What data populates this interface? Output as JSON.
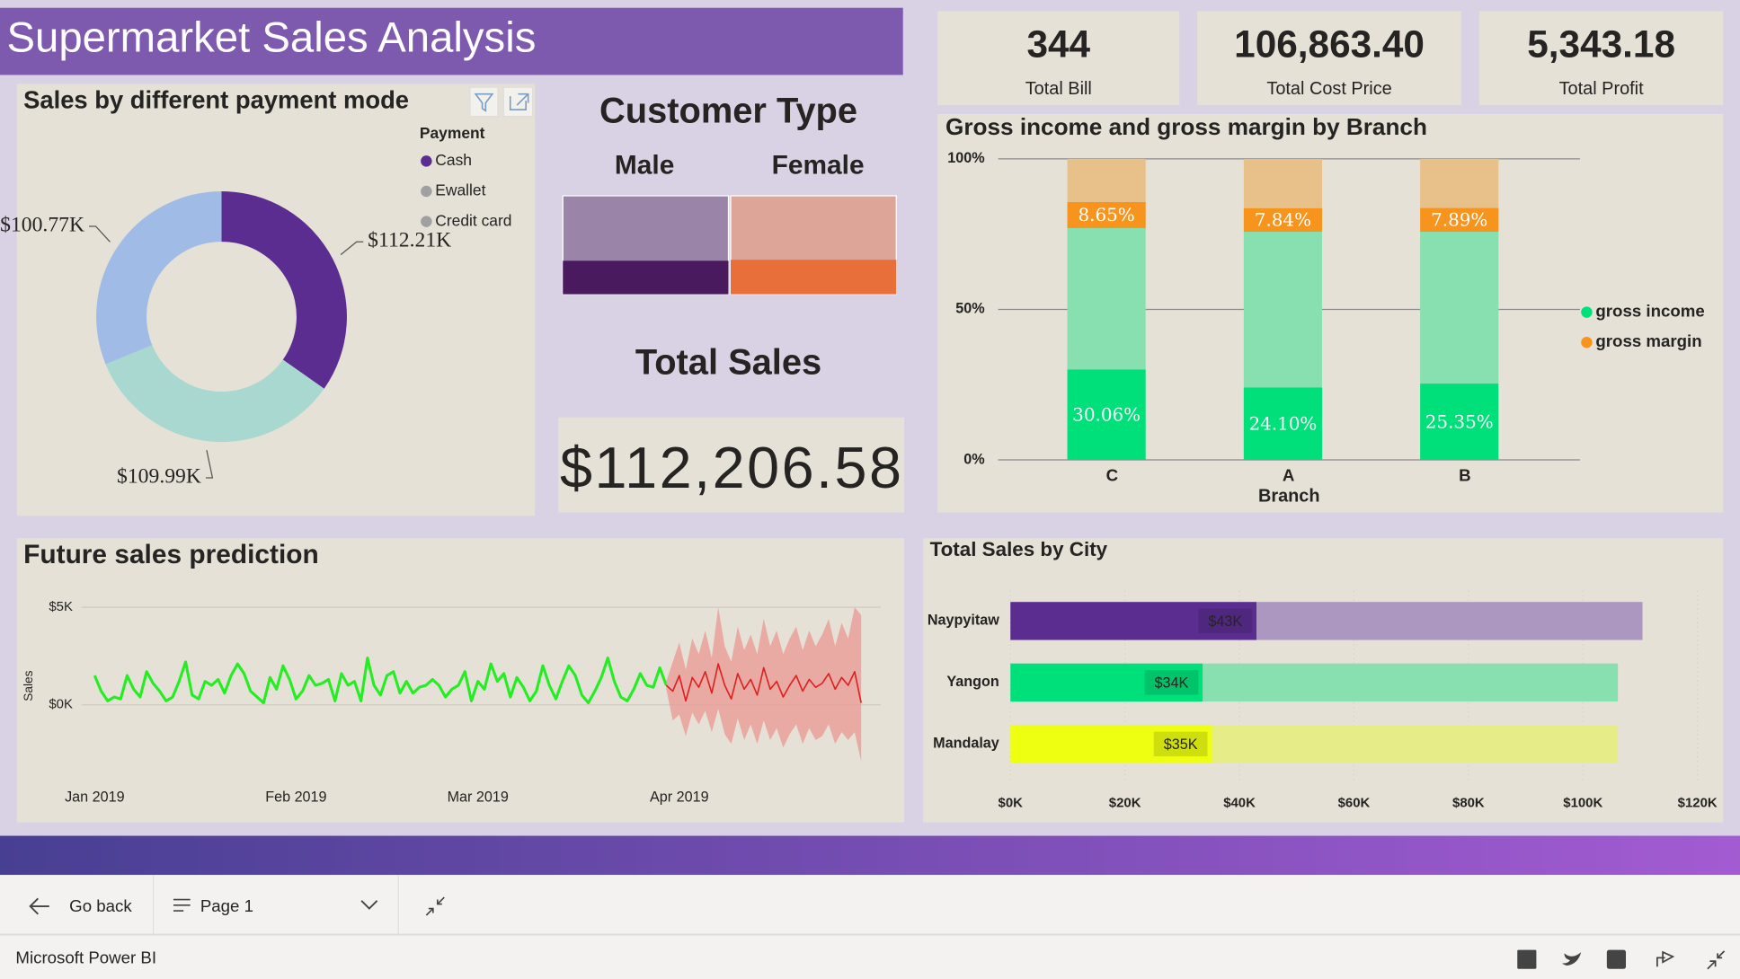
{
  "header": {
    "title": "Supermarket Sales Analysis"
  },
  "kpis": [
    {
      "value": "344",
      "label": "Total Bill"
    },
    {
      "value": "106,863.40",
      "label": "Total Cost Price"
    },
    {
      "value": "5,343.18",
      "label": "Total Profit"
    }
  ],
  "customer_type": {
    "title": "Customer Type",
    "categories": [
      "Male",
      "Female"
    ],
    "values": [
      34,
      35
    ],
    "ylim": [
      0,
      100
    ],
    "colors": [
      "#4a1a5e",
      "#e86f3a"
    ],
    "faded_colors": [
      "#9a84a8",
      "#dca598"
    ]
  },
  "total_sales": {
    "title": "Total Sales",
    "value": "$112,206.58"
  },
  "chart_data": [
    {
      "type": "donut",
      "title": "Sales by different payment mode",
      "legend_title": "Payment",
      "categories": [
        "Cash",
        "Ewallet",
        "Credit card"
      ],
      "values": [
        112.21,
        109.99,
        100.77
      ],
      "value_labels": [
        "$112.21K",
        "$109.99K",
        "$100.77K"
      ],
      "colors": [
        "#5c2d91",
        "#a8d8d0",
        "#a0bce6"
      ],
      "legend_colors": [
        "#5c2d91",
        "#a0a0a0",
        "#a0a0a0"
      ]
    },
    {
      "type": "stacked_bar",
      "title": "Gross income and gross margin by Branch",
      "categories": [
        "C",
        "A",
        "B"
      ],
      "xlabel": "Branch",
      "ylim": [
        0,
        100
      ],
      "yticks": [
        {
          "value": 0,
          "label": "0%"
        },
        {
          "value": 50,
          "label": "50%"
        },
        {
          "value": 100,
          "label": "100%"
        }
      ],
      "grid": true,
      "legend": "right",
      "series": [
        {
          "name": "gross income",
          "color": "#00e07a",
          "values": [
            30.06,
            24.1,
            25.35
          ],
          "value_labels": [
            "30.06%",
            "24.10%",
            "25.35%"
          ]
        },
        {
          "color": "#88e0b0",
          "values": [
            46.94,
            51.7,
            50.45
          ]
        },
        {
          "name": "gross margin",
          "color": "#f7941d",
          "values": [
            8.65,
            7.84,
            7.89
          ],
          "value_labels": [
            "8.65%",
            "7.84%",
            "7.89%"
          ]
        },
        {
          "color": "#e8c08a",
          "values": [
            14.35,
            16.32,
            16.31
          ]
        }
      ]
    },
    {
      "type": "line",
      "title": "Future sales prediction",
      "ylabel": "Sales",
      "xlim": [
        -2,
        121
      ],
      "xticks": [
        {
          "value": 0,
          "label": "Jan 2019"
        },
        {
          "value": 31,
          "label": "Feb 2019"
        },
        {
          "value": 59,
          "label": "Mar 2019"
        },
        {
          "value": 90,
          "label": "Apr 2019"
        }
      ],
      "ylim": [
        -3500,
        5500
      ],
      "yticks": [
        {
          "value": 0,
          "label": "$0K"
        },
        {
          "value": 5000,
          "label": "$5K"
        }
      ],
      "grid": true,
      "series": [
        {
          "color": "#22ee22",
          "x": [
            0,
            1,
            2,
            3,
            4,
            5,
            6,
            7,
            8,
            9,
            10,
            11,
            12,
            13,
            14,
            15,
            16,
            17,
            18,
            19,
            20,
            21,
            22,
            23,
            24,
            25,
            26,
            27,
            28,
            29,
            30,
            31,
            32,
            33,
            34,
            35,
            36,
            37,
            38,
            39,
            40,
            41,
            42,
            43,
            44,
            45,
            46,
            47,
            48,
            49,
            50,
            51,
            52,
            53,
            54,
            55,
            56,
            57,
            58,
            59,
            60,
            61,
            62,
            63,
            64,
            65,
            66,
            67,
            68,
            69,
            70,
            71,
            72,
            73,
            74,
            75,
            76,
            77,
            78,
            79,
            80,
            81,
            82,
            83,
            84,
            85,
            86,
            87,
            88
          ],
          "values": [
            1500,
            700,
            200,
            400,
            300,
            1500,
            800,
            400,
            1700,
            1100,
            700,
            200,
            400,
            1200,
            2200,
            500,
            300,
            1200,
            1000,
            1300,
            600,
            1500,
            2100,
            1600,
            700,
            400,
            100,
            1400,
            800,
            2000,
            1300,
            300,
            700,
            1500,
            1000,
            1100,
            1300,
            200,
            1600,
            1000,
            1200,
            200,
            2400,
            1000,
            500,
            1500,
            1700,
            600,
            1200,
            600,
            900,
            1000,
            1300,
            1000,
            400,
            800,
            1000,
            1700,
            200,
            1200,
            800,
            2100,
            1200,
            1600,
            400,
            1400,
            900,
            200,
            700,
            2000,
            1000,
            300,
            1200,
            2000,
            1500,
            500,
            100,
            700,
            1400,
            2400,
            1200,
            400,
            200,
            800,
            1600,
            1000,
            900,
            1900,
            1000
          ]
        },
        {
          "color": "#e02020",
          "band_color": "#e8a09a",
          "x": [
            88,
            89,
            90,
            91,
            92,
            93,
            94,
            95,
            96,
            97,
            98,
            99,
            100,
            101,
            102,
            103,
            104,
            105,
            106,
            107,
            108,
            109,
            110,
            111,
            112,
            113,
            114,
            115,
            116,
            117,
            118
          ],
          "values": [
            1000,
            700,
            1500,
            200,
            1400,
            900,
            1700,
            600,
            2100,
            1000,
            300,
            1600,
            800,
            1300,
            500,
            1900,
            800,
            1200,
            400,
            1000,
            1500,
            700,
            1300,
            900,
            1100,
            1600,
            800,
            1400,
            1000,
            1700,
            100
          ],
          "upper": [
            1200,
            2200,
            3200,
            1800,
            3400,
            2600,
            3800,
            2400,
            5000,
            3000,
            2200,
            4000,
            2800,
            3600,
            2600,
            4400,
            3000,
            3800,
            2600,
            3400,
            4000,
            2800,
            3800,
            3000,
            3600,
            4400,
            3000,
            4200,
            3400,
            5000,
            4600
          ],
          "lower": [
            800,
            -800,
            -500,
            -1600,
            -400,
            -1000,
            -300,
            -1400,
            -200,
            -1500,
            -2000,
            -700,
            -1800,
            -1000,
            -2000,
            -800,
            -1800,
            -1200,
            -2200,
            -1500,
            -1000,
            -2000,
            -1200,
            -1800,
            -1600,
            -1000,
            -2000,
            -1400,
            -1800,
            -1400,
            -2900
          ]
        }
      ]
    },
    {
      "type": "hbar",
      "title": "Total Sales by City",
      "categories": [
        "Naypyitaw",
        "Yangon",
        "Mandalay"
      ],
      "xlim": [
        0,
        120
      ],
      "xticks": [
        {
          "value": 0,
          "label": "$0K"
        },
        {
          "value": 20,
          "label": "$20K"
        },
        {
          "value": 40,
          "label": "$40K"
        },
        {
          "value": 60,
          "label": "$60K"
        },
        {
          "value": 80,
          "label": "$80K"
        },
        {
          "value": 100,
          "label": "$100K"
        },
        {
          "value": 120,
          "label": "$120K"
        }
      ],
      "series": [
        {
          "colors": [
            "#5c2d91",
            "#00e07a",
            "#eeff11"
          ],
          "values": [
            43.0,
            33.6,
            35.2
          ],
          "value_labels": [
            "$43K",
            "$34K",
            "$35K"
          ]
        },
        {
          "colors": [
            "#ab97c0",
            "#88e0b0",
            "#e6ec88"
          ],
          "values": [
            67.4,
            72.5,
            70.9
          ]
        }
      ]
    }
  ],
  "footer": {
    "back": "Go back",
    "page": "Page 1",
    "brand": "Microsoft Power BI"
  }
}
